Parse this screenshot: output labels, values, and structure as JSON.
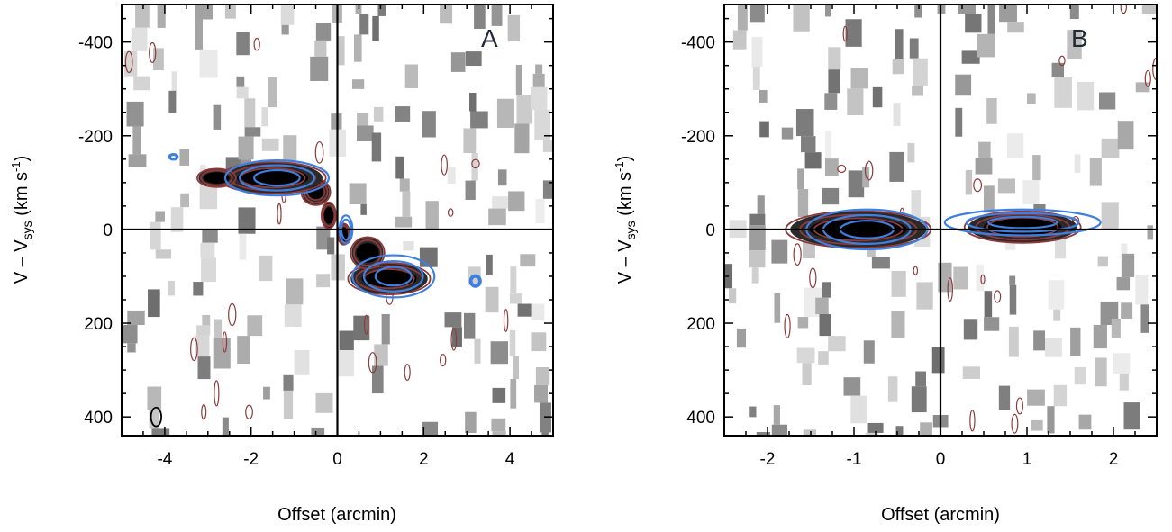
{
  "colors": {
    "frame": "#000000",
    "emission_contour": "#8e3a3a",
    "model_contour": "#3f7fe0",
    "core": "#000000"
  },
  "chart_data": [
    {
      "type": "heatmap",
      "panel_label": "A",
      "xlabel": "Offset (arcmin)",
      "ylabel_main": "V – V",
      "ylabel_sub": "sys",
      "ylabel_unit": " (km s",
      "ylabel_exp": "-1",
      "ylabel_end": ")",
      "xlim": [
        -5,
        5
      ],
      "ylim": [
        440,
        -480
      ],
      "xticks": [
        -4,
        -2,
        0,
        2,
        4
      ],
      "xtick_labels": [
        "-4",
        "-2",
        "0",
        "2",
        "4"
      ],
      "yticks": [
        -400,
        -200,
        0,
        200,
        400
      ],
      "ytick_labels": [
        "-400",
        "-200",
        "0",
        "200",
        "400"
      ],
      "beam": {
        "x": -4.2,
        "y": 400,
        "rx": 0.12,
        "ry": 20
      },
      "emission": [
        {
          "x": 1.2,
          "y": 105,
          "w": 1.7,
          "h": 60,
          "level": 3
        },
        {
          "x": 0.7,
          "y": 50,
          "w": 0.7,
          "h": 60,
          "level": 2
        },
        {
          "x": 0.15,
          "y": 10,
          "w": 0.25,
          "h": 40,
          "level": 2
        },
        {
          "x": -0.2,
          "y": -30,
          "w": 0.3,
          "h": 50,
          "level": 2
        },
        {
          "x": -0.5,
          "y": -80,
          "w": 0.6,
          "h": 50,
          "level": 3
        },
        {
          "x": -1.5,
          "y": -110,
          "w": 2.2,
          "h": 60,
          "level": 3
        },
        {
          "x": -2.8,
          "y": -110,
          "w": 0.8,
          "h": 35,
          "level": 2
        }
      ],
      "model": [
        {
          "x": 1.3,
          "y": 100,
          "w": 1.9,
          "h": 90,
          "level": 2
        },
        {
          "x": 3.2,
          "y": 110,
          "w": 0.25,
          "h": 25,
          "level": 1
        },
        {
          "x": 0.2,
          "y": 0,
          "w": 0.3,
          "h": 60,
          "level": 1
        },
        {
          "x": -1.4,
          "y": -110,
          "w": 2.4,
          "h": 75,
          "level": 2
        },
        {
          "x": -3.8,
          "y": -155,
          "w": 0.2,
          "h": 12,
          "level": 1
        }
      ],
      "noise_columns": 19
    },
    {
      "type": "heatmap",
      "panel_label": "B",
      "xlabel": "Offset (arcmin)",
      "ylabel_main": "V – V",
      "ylabel_sub": "sys",
      "ylabel_unit": " (km s",
      "ylabel_exp": "-1",
      "ylabel_end": ")",
      "xlim": [
        -2.5,
        2.5
      ],
      "ylim": [
        440,
        -480
      ],
      "xticks": [
        -2,
        -1,
        0,
        1,
        2
      ],
      "xtick_labels": [
        "-2",
        "-1",
        "0",
        "1",
        "2"
      ],
      "yticks": [
        -400,
        -200,
        0,
        200,
        400
      ],
      "ytick_labels": [
        "-400",
        "-200",
        "0",
        "200",
        "400"
      ],
      "beam": null,
      "emission": [
        {
          "x": -0.95,
          "y": 0,
          "w": 1.5,
          "h": 70,
          "level": 3
        },
        {
          "x": 0.95,
          "y": -5,
          "w": 1.2,
          "h": 60,
          "level": 3
        }
      ],
      "model": [
        {
          "x": -0.85,
          "y": 0,
          "w": 1.4,
          "h": 85,
          "level": 2
        },
        {
          "x": 0.95,
          "y": -15,
          "w": 1.8,
          "h": 55,
          "level": 2
        }
      ],
      "noise_columns": 19
    }
  ]
}
